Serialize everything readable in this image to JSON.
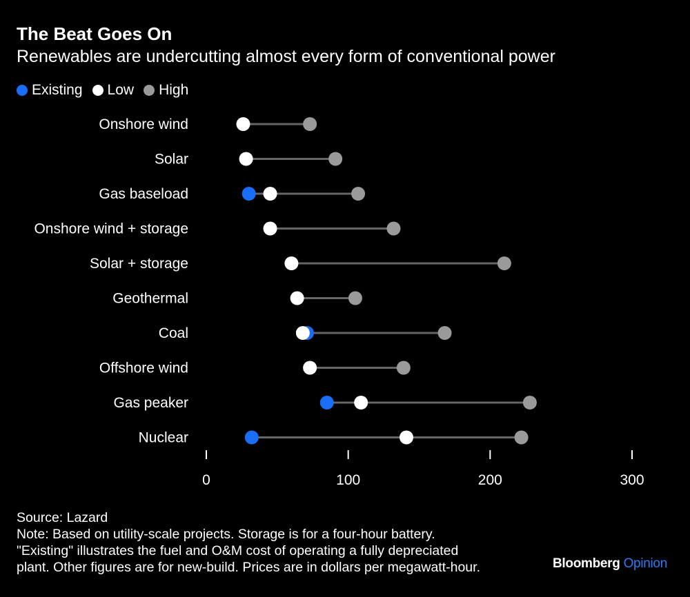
{
  "chart_data": {
    "type": "dot-range",
    "title": "The Beat Goes On",
    "subtitle": "Renewables are undercutting almost every form of conventional power",
    "legend": [
      {
        "name": "Existing",
        "color": "#1a6ef5"
      },
      {
        "name": "Low",
        "color": "#ffffff"
      },
      {
        "name": "High",
        "color": "#9a9a9a"
      }
    ],
    "legend_placement": "top-left",
    "categories": [
      "Onshore wind",
      "Solar",
      "Gas baseload",
      "Onshore wind + storage",
      "Solar + storage",
      "Geothermal",
      "Coal",
      "Offshore wind",
      "Gas peaker",
      "Nuclear"
    ],
    "series": [
      {
        "name": "Existing",
        "values": [
          null,
          null,
          30,
          null,
          null,
          null,
          71,
          null,
          85,
          32
        ]
      },
      {
        "name": "Low",
        "values": [
          26,
          28,
          45,
          45,
          60,
          64,
          68,
          73,
          109,
          141
        ]
      },
      {
        "name": "High",
        "values": [
          73,
          91,
          107,
          132,
          210,
          105,
          168,
          139,
          228,
          222
        ]
      }
    ],
    "xlim": [
      0,
      300
    ],
    "xticks": [
      "0",
      "100",
      "200",
      "300"
    ],
    "xtick_values": [
      0,
      100,
      200,
      300
    ],
    "grid": false,
    "line_color": "#666666"
  },
  "notes": {
    "source": "Source: Lazard",
    "lines": [
      "Note: Based on utility-scale projects. Storage is for a four-hour battery.",
      "\"Existing\" illustrates the fuel and O&M cost of operating a fully depreciated",
      "plant. Other figures are for new-build. Prices are in dollars per megawatt-hour."
    ]
  },
  "logo": {
    "brand": "Bloomberg",
    "section": "Opinion"
  }
}
